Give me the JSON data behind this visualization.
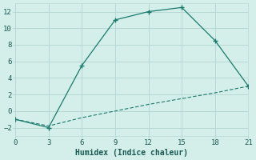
{
  "xlabel": "Humidex (Indice chaleur)",
  "bg_color": "#d4eeea",
  "grid_color": "#b8d8d4",
  "line_color": "#1a7a6e",
  "line1_x": [
    0,
    3,
    6,
    9,
    12,
    15,
    18,
    21
  ],
  "line1_y": [
    -1,
    -2,
    5.5,
    11,
    12,
    12.5,
    8.5,
    3
  ],
  "line2_x": [
    0,
    3,
    6,
    9,
    12,
    15,
    18,
    21
  ],
  "line2_y": [
    -1.0,
    -1.8,
    -0.8,
    0.0,
    0.8,
    1.5,
    2.2,
    3.0
  ],
  "xlim": [
    0,
    21
  ],
  "ylim": [
    -3,
    13
  ],
  "xticks": [
    0,
    3,
    6,
    9,
    12,
    15,
    18,
    21
  ],
  "yticks": [
    -2,
    0,
    2,
    4,
    6,
    8,
    10,
    12
  ],
  "tick_fontsize": 6.5,
  "xlabel_fontsize": 7
}
